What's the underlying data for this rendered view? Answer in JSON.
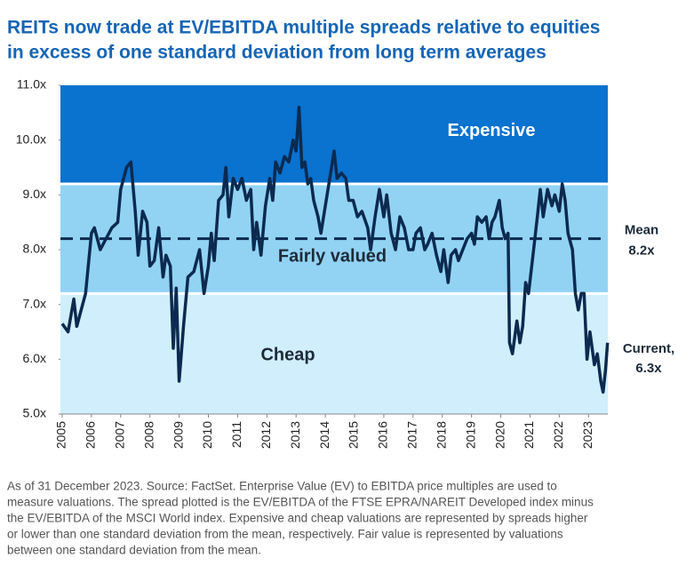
{
  "chart_data": {
    "type": "line",
    "title": [
      "REITs now trade at EV/EBITDA multiple spreads relative to equities",
      "in excess of one standard deviation from long term averages"
    ],
    "x": [
      2005.0,
      2005.2,
      2005.4,
      2005.5,
      2005.8,
      2006.0,
      2006.1,
      2006.3,
      2006.5,
      2006.7,
      2006.9,
      2007.0,
      2007.2,
      2007.35,
      2007.5,
      2007.6,
      2007.75,
      2007.9,
      2008.0,
      2008.15,
      2008.3,
      2008.45,
      2008.55,
      2008.7,
      2008.8,
      2008.9,
      2009.0,
      2009.15,
      2009.3,
      2009.5,
      2009.7,
      2009.85,
      2010.0,
      2010.1,
      2010.2,
      2010.35,
      2010.5,
      2010.6,
      2010.7,
      2010.85,
      2011.0,
      2011.15,
      2011.3,
      2011.45,
      2011.55,
      2011.65,
      2011.8,
      2011.95,
      2012.1,
      2012.2,
      2012.3,
      2012.45,
      2012.6,
      2012.75,
      2012.9,
      2013.0,
      2013.1,
      2013.2,
      2013.3,
      2013.4,
      2013.5,
      2013.6,
      2013.75,
      2013.85,
      2014.0,
      2014.15,
      2014.3,
      2014.4,
      2014.55,
      2014.7,
      2014.8,
      2014.95,
      2015.1,
      2015.25,
      2015.45,
      2015.55,
      2015.7,
      2015.85,
      2016.0,
      2016.1,
      2016.25,
      2016.4,
      2016.55,
      2016.7,
      2016.85,
      2017.0,
      2017.1,
      2017.25,
      2017.4,
      2017.5,
      2017.65,
      2017.8,
      2017.95,
      2018.05,
      2018.2,
      2018.3,
      2018.45,
      2018.55,
      2018.7,
      2018.85,
      2019.0,
      2019.1,
      2019.2,
      2019.35,
      2019.5,
      2019.6,
      2019.7,
      2019.8,
      2019.95,
      2020.05,
      2020.15,
      2020.25,
      2020.3,
      2020.4,
      2020.55,
      2020.65,
      2020.75,
      2020.85,
      2020.95,
      2021.1,
      2021.25,
      2021.35,
      2021.45,
      2021.6,
      2021.75,
      2021.85,
      2022.0,
      2022.1,
      2022.2,
      2022.3,
      2022.45,
      2022.55,
      2022.65,
      2022.75,
      2022.85,
      2022.95,
      2023.05,
      2023.2,
      2023.3,
      2023.42,
      2023.5,
      2023.58,
      2023.65
    ],
    "series": [
      {
        "color": "#0c2a4f",
        "values": [
          6.65,
          6.5,
          7.1,
          6.6,
          7.2,
          8.3,
          8.4,
          8.0,
          8.2,
          8.4,
          8.5,
          9.1,
          9.5,
          9.6,
          8.7,
          7.9,
          8.7,
          8.5,
          7.7,
          7.8,
          8.4,
          7.5,
          7.9,
          7.7,
          6.2,
          7.3,
          5.6,
          6.6,
          7.5,
          7.6,
          8.0,
          7.2,
          7.7,
          8.3,
          7.8,
          8.9,
          9.0,
          9.5,
          8.6,
          9.3,
          9.1,
          9.3,
          8.9,
          9.1,
          8.0,
          8.5,
          7.9,
          8.8,
          9.3,
          8.9,
          9.6,
          9.4,
          9.7,
          9.6,
          10.0,
          9.8,
          10.6,
          9.5,
          9.6,
          9.2,
          9.3,
          8.9,
          8.6,
          8.3,
          8.8,
          9.3,
          9.8,
          9.3,
          9.4,
          9.3,
          8.9,
          8.9,
          8.6,
          8.7,
          8.4,
          8.0,
          8.6,
          9.1,
          8.6,
          9.0,
          8.3,
          8.0,
          8.6,
          8.4,
          8.0,
          8.0,
          8.3,
          8.4,
          8.0,
          8.1,
          8.3,
          7.9,
          7.6,
          8.0,
          7.4,
          7.9,
          8.0,
          7.8,
          8.0,
          8.2,
          8.3,
          8.1,
          8.6,
          8.5,
          8.6,
          8.2,
          8.5,
          8.6,
          8.9,
          8.4,
          8.2,
          8.3,
          6.3,
          6.1,
          6.7,
          6.3,
          6.6,
          7.4,
          7.2,
          7.9,
          8.6,
          9.1,
          8.6,
          9.1,
          8.8,
          9.0,
          8.7,
          9.2,
          8.9,
          8.3,
          8.0,
          7.2,
          6.9,
          7.2,
          7.2,
          6.0,
          6.5,
          5.9,
          6.1,
          5.6,
          5.4,
          5.8,
          6.3
        ]
      }
    ],
    "xlim": [
      2004.94,
      2023.66
    ],
    "xticks": [
      2005,
      2006,
      2007,
      2008,
      2009,
      2010,
      2011,
      2012,
      2013,
      2014,
      2015,
      2016,
      2017,
      2018,
      2019,
      2020,
      2021,
      2022,
      2023
    ],
    "ylim": [
      5,
      11
    ],
    "yticks": [
      {
        "value": 5,
        "label": "5.0x"
      },
      {
        "value": 6,
        "label": "6.0x"
      },
      {
        "value": 7,
        "label": "7.0x"
      },
      {
        "value": 8,
        "label": "8.0x"
      },
      {
        "value": 9,
        "label": "9.0x"
      },
      {
        "value": 10,
        "label": "10.0x"
      },
      {
        "value": 11,
        "label": "11.0x"
      }
    ],
    "bands": [
      {
        "name": "Expensive",
        "from": 9.2,
        "to": 11,
        "color": "#0a72cf",
        "text_color": "#ffffff"
      },
      {
        "name": "Fairly valued",
        "from": 7.2,
        "to": 9.2,
        "color": "#92d3f4",
        "text_color": "#1d2b3a"
      },
      {
        "name": "Cheap",
        "from": 5,
        "to": 7.2,
        "color": "#d0eefc",
        "text_color": "#1d2b3a"
      }
    ],
    "mean": {
      "value": 8.2,
      "label": "Mean",
      "value_label": "8.2x",
      "color": "#0c2a4f"
    },
    "current": {
      "label": "Current,",
      "value": 6.3,
      "value_label": "6.3x"
    },
    "note": [
      "As of 31 December 2023. Source: FactSet. Enterprise Value (EV) to EBITDA price multiples are used to",
      "measure valuations. The spread plotted is the EV/EBITDA of the FTSE EPRA/NAREIT Developed index minus",
      "the EV/EBITDA of the MSCI World index. Expensive and cheap valuations are represented by spreads higher",
      "or lower than one standard deviation from the mean, respectively. Fair value is represented by valuations",
      "between one standard deviation from the mean."
    ]
  }
}
